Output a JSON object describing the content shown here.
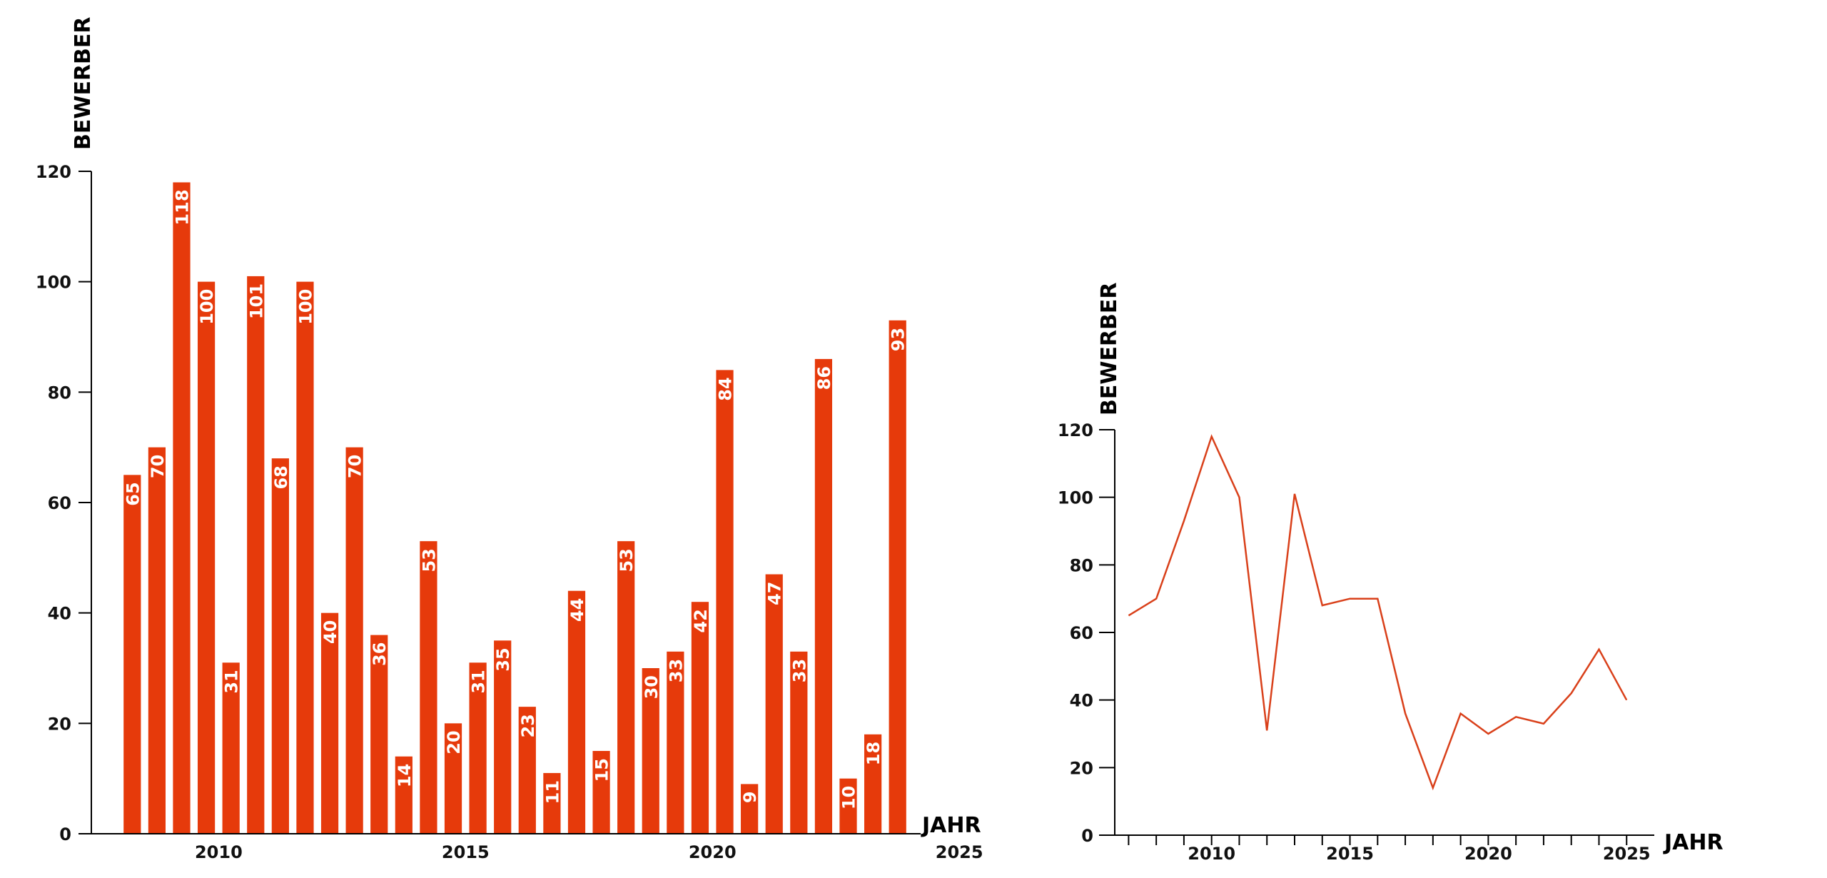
{
  "chart_data": [
    {
      "type": "bar",
      "ylabel": "BEWERBER",
      "xlabel": "JAHR",
      "ylim": [
        0,
        120
      ],
      "y_ticks": [
        "0",
        "20",
        "40",
        "60",
        "80",
        "100",
        "120"
      ],
      "x_ticks": [
        "2010",
        "2015",
        "2020",
        "2025"
      ],
      "color": "#e63a0b",
      "values": [
        65,
        70,
        118,
        100,
        31,
        101,
        68,
        100,
        40,
        70,
        36,
        14,
        53,
        20,
        31,
        35,
        23,
        11,
        44,
        15,
        53,
        30,
        33,
        42,
        84,
        9,
        47,
        33,
        86,
        10,
        18,
        93
      ],
      "labels": [
        "65",
        "70",
        "118",
        "100",
        "31",
        "101",
        "68",
        "100",
        "40",
        "70",
        "36",
        "14",
        "53",
        "20",
        "31",
        "35",
        "23",
        "11",
        "44",
        "15",
        "53",
        "30",
        "33",
        "42",
        "84",
        "9",
        "47",
        "33",
        "86",
        "10",
        "18",
        "93"
      ]
    },
    {
      "type": "line",
      "ylabel": "BEWERBER",
      "xlabel": "JAHR",
      "ylim": [
        0,
        120
      ],
      "xlim": [
        2006.5,
        2026
      ],
      "y_ticks": [
        "0",
        "20",
        "40",
        "60",
        "80",
        "100",
        "120"
      ],
      "x_ticks": [
        "2010",
        "2015",
        "2020",
        "2025"
      ],
      "color": "#d9401a",
      "x": [
        2007,
        2008,
        2009,
        2010,
        2011,
        2012,
        2013,
        2014,
        2015,
        2016,
        2017,
        2018,
        2019,
        2020,
        2021,
        2022,
        2023,
        2024,
        2025
      ],
      "y": [
        65,
        70,
        93,
        118,
        100,
        31,
        101,
        68,
        70,
        70,
        36,
        14,
        36,
        30,
        35,
        33,
        42,
        55,
        40
      ]
    }
  ]
}
